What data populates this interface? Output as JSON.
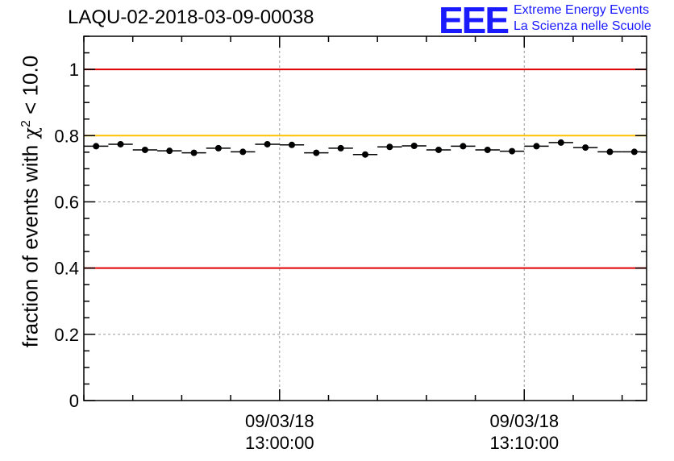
{
  "header": {
    "run_id": "LAQU-02-2018-03-09-00038"
  },
  "logo": {
    "mark": "EEE",
    "line1": "Extreme Energy Events",
    "line2": "La Scienza nelle Scuole",
    "color": "#1a1aff"
  },
  "chart_data": {
    "type": "scatter",
    "title": "LAQU-02-2018-03-09-00038",
    "xlabel": "",
    "ylabel": {
      "prefix": "fraction of events with ",
      "symbol": "χ",
      "superscript": "2",
      "suffix": " < 10.0"
    },
    "ylim": [
      0,
      1.1
    ],
    "yticks": [
      0,
      0.2,
      0.4,
      0.6,
      0.8,
      1
    ],
    "ytick_labels": [
      "0",
      "0.2",
      "0.4",
      "0.6",
      "0.8",
      "1"
    ],
    "xlim_minutes": [
      -8,
      15
    ],
    "major_xticks_minutes": [
      0,
      10
    ],
    "xtick_labels": [
      {
        "date": "09/03/18",
        "time": "13:00:00"
      },
      {
        "date": "09/03/18",
        "time": "13:10:00"
      }
    ],
    "grid": true,
    "bin_width_minutes": 1,
    "series": [
      {
        "name": "fraction",
        "marker": "circle",
        "color": "#000000",
        "x_minutes": [
          -7.5,
          -6.5,
          -5.5,
          -4.5,
          -3.5,
          -2.5,
          -1.5,
          -0.5,
          0.5,
          1.5,
          2.5,
          3.5,
          4.5,
          5.5,
          6.5,
          7.5,
          8.5,
          9.5,
          10.5,
          11.5,
          12.5,
          13.5,
          14.5
        ],
        "values": [
          0.768,
          0.774,
          0.757,
          0.754,
          0.748,
          0.762,
          0.751,
          0.774,
          0.772,
          0.748,
          0.762,
          0.743,
          0.766,
          0.769,
          0.757,
          0.768,
          0.757,
          0.753,
          0.768,
          0.779,
          0.764,
          0.751,
          0.751
        ]
      }
    ],
    "reference_lines": [
      {
        "value": 1.0,
        "color": "#e00000"
      },
      {
        "value": 0.8,
        "color": "#ffc000"
      },
      {
        "value": 0.4,
        "color": "#e00000"
      }
    ]
  }
}
